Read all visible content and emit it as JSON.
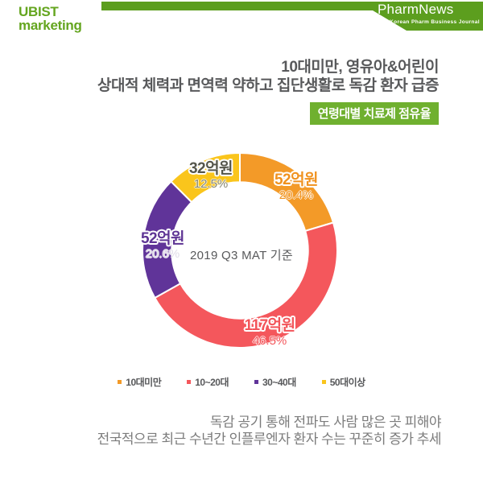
{
  "header": {
    "logo_line1": "UBIST",
    "logo_line2": "marketing",
    "logo_color": "#64a51f",
    "banner_title": "PharmNews",
    "banner_subtitle": "The Korean Pharm Business Journal",
    "banner_color": "#5c9e1e"
  },
  "headline": {
    "line1": "10대미만, 영유아&어린이",
    "line2": "상대적 체력과 면역력 약하고 집단생활로 독감 환자 급증",
    "text_color": "#58595b"
  },
  "badge": {
    "label": "연령대별 치료제 점유율",
    "background_color": "#6fb02f"
  },
  "chart_data": {
    "type": "pie",
    "variant": "donut",
    "title": "연령대별 치료제 점유율",
    "center_caption": "2019 Q3 MAT 기준",
    "unit": "억원",
    "categories": [
      "10대미만",
      "10~20대",
      "30~40대",
      "50대이상"
    ],
    "values": [
      52,
      117,
      52,
      32
    ],
    "percents": [
      20.4,
      46.5,
      20.6,
      12.5
    ],
    "start_angle_deg": 0,
    "direction": "clockwise",
    "inner_radius_ratio": 0.7,
    "legend_position": "bottom",
    "segments": [
      {
        "name": "10대미만",
        "value": 52,
        "percent": 20.4,
        "value_label": "52억원",
        "percent_label": "20.4%",
        "color": "#f39a28",
        "label_color": "#f0921f",
        "percent_color": "#f0921f"
      },
      {
        "name": "10~20대",
        "value": 117,
        "percent": 46.5,
        "value_label": "117억원",
        "percent_label": "46.5%",
        "color": "#f4575c",
        "label_color": "#f3555a",
        "percent_color": "#f3555a"
      },
      {
        "name": "30~40대",
        "value": 52,
        "percent": 20.6,
        "value_label": "52억원",
        "percent_label": "20.6%",
        "color": "#603499",
        "label_color": "#5e3494",
        "percent_color": "#e0dce8"
      },
      {
        "name": "50대이상",
        "value": 32,
        "percent": 12.5,
        "value_label": "32억원",
        "percent_label": "12.5%",
        "color": "#fac51c",
        "label_color": "#55564b",
        "percent_color": "#85856f"
      }
    ]
  },
  "footer": {
    "line1": "독감 공기 통해 전파도 사람 많은 곳 피해야",
    "line2": "전국적으로 최근 수년간 인플루엔자 환자 수는 꾸준히 증가 추세",
    "text_color": "#7c7c7c"
  }
}
